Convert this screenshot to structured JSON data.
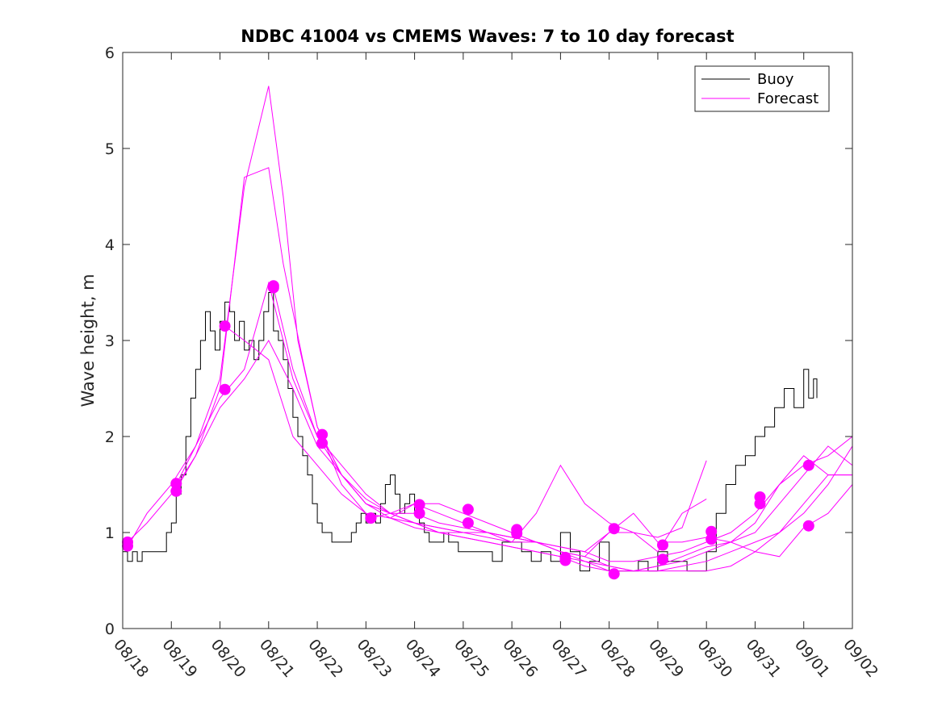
{
  "chart_data": {
    "type": "line",
    "title": "NDBC 41004 vs CMEMS Waves: 7 to 10 day forecast",
    "xlabel": "",
    "ylabel": "Wave height, m",
    "xlim": [
      0,
      15
    ],
    "ylim": [
      0,
      6
    ],
    "yticks": [
      0,
      1,
      2,
      3,
      4,
      5,
      6
    ],
    "xtick_labels": [
      "08/18",
      "08/19",
      "08/20",
      "08/21",
      "08/22",
      "08/23",
      "08/24",
      "08/25",
      "08/26",
      "08/27",
      "08/28",
      "08/29",
      "08/30",
      "08/31",
      "09/01",
      "09/02"
    ],
    "legend": {
      "position": "top-right",
      "entries": [
        {
          "name": "Buoy",
          "color": "#000000"
        },
        {
          "name": "Forecast",
          "color": "#ff00ff"
        }
      ]
    },
    "colors": {
      "buoy": "#000000",
      "forecast": "#ff00ff"
    },
    "series": [
      {
        "name": "Buoy",
        "color": "#000000",
        "x": [
          0.0,
          0.1,
          0.2,
          0.3,
          0.4,
          0.5,
          0.6,
          0.7,
          0.8,
          0.9,
          1.0,
          1.1,
          1.2,
          1.3,
          1.4,
          1.5,
          1.6,
          1.7,
          1.8,
          1.9,
          2.0,
          2.1,
          2.2,
          2.3,
          2.4,
          2.5,
          2.6,
          2.7,
          2.8,
          2.9,
          3.0,
          3.1,
          3.2,
          3.3,
          3.4,
          3.5,
          3.6,
          3.7,
          3.8,
          3.9,
          4.0,
          4.1,
          4.2,
          4.3,
          4.4,
          4.5,
          4.6,
          4.7,
          4.8,
          4.9,
          5.0,
          5.1,
          5.2,
          5.3,
          5.4,
          5.5,
          5.6,
          5.7,
          5.8,
          5.9,
          6.0,
          6.1,
          6.2,
          6.3,
          6.4,
          6.5,
          6.6,
          6.7,
          6.8,
          6.9,
          7.0,
          7.2,
          7.4,
          7.6,
          7.8,
          8.0,
          8.2,
          8.4,
          8.6,
          8.8,
          9.0,
          9.2,
          9.4,
          9.6,
          9.8,
          10.0,
          10.2,
          10.4,
          10.6,
          10.8,
          11.0,
          11.2,
          11.4,
          11.6,
          11.8,
          12.0,
          12.2,
          12.4,
          12.6,
          12.8,
          13.0,
          13.2,
          13.4,
          13.6,
          13.8,
          14.0,
          14.1,
          14.2,
          14.27
        ],
        "y": [
          0.8,
          0.7,
          0.8,
          0.7,
          0.8,
          0.8,
          0.8,
          0.8,
          0.8,
          1.0,
          1.1,
          1.4,
          1.6,
          2.0,
          2.4,
          2.7,
          3.0,
          3.3,
          3.1,
          2.9,
          3.2,
          3.4,
          3.3,
          3.0,
          3.2,
          2.9,
          3.0,
          2.8,
          3.0,
          3.3,
          3.5,
          3.1,
          3.0,
          2.8,
          2.5,
          2.2,
          2.0,
          1.8,
          1.6,
          1.3,
          1.1,
          1.0,
          1.0,
          0.9,
          0.9,
          0.9,
          0.9,
          1.0,
          1.1,
          1.2,
          1.1,
          1.2,
          1.1,
          1.3,
          1.5,
          1.6,
          1.4,
          1.2,
          1.3,
          1.4,
          1.2,
          1.1,
          1.0,
          0.9,
          0.9,
          0.9,
          1.0,
          0.9,
          0.9,
          0.8,
          0.8,
          0.8,
          0.8,
          0.7,
          0.9,
          0.9,
          0.8,
          0.7,
          0.8,
          0.7,
          1.0,
          0.8,
          0.6,
          0.7,
          0.9,
          0.6,
          0.6,
          0.6,
          0.7,
          0.6,
          0.8,
          0.7,
          0.7,
          0.6,
          0.6,
          0.8,
          1.2,
          1.5,
          1.7,
          1.8,
          2.0,
          2.1,
          2.3,
          2.5,
          2.3,
          2.7,
          2.4,
          2.6,
          2.4
        ]
      },
      {
        "name": "Forecast",
        "color": "#ff00ff",
        "x": [
          0.1,
          0.5,
          1.0,
          1.5,
          2.0,
          2.5,
          3.0,
          3.5,
          4.0,
          4.5,
          5.0,
          5.5,
          6.0,
          6.5,
          7.0,
          7.5,
          8.0,
          8.5,
          9.0,
          9.5,
          10.0,
          10.5,
          11.0,
          11.5,
          12.0,
          12.5,
          13.0,
          13.5,
          14.0,
          14.5,
          15.0
        ],
        "y": [
          0.9,
          1.1,
          1.4,
          1.8,
          2.3,
          2.6,
          3.0,
          2.5,
          1.9,
          1.6,
          1.3,
          1.2,
          1.1,
          1.0,
          1.0,
          0.95,
          0.9,
          0.9,
          0.85,
          0.8,
          0.7,
          0.7,
          0.75,
          0.8,
          0.9,
          1.0,
          1.2,
          1.5,
          1.8,
          1.6,
          1.6
        ]
      },
      {
        "name": "Forecast",
        "color": "#ff00ff",
        "x": [
          0.1,
          0.5,
          1.0,
          1.5,
          2.0,
          2.5,
          3.0,
          3.5,
          4.0,
          4.5,
          5.0,
          5.5,
          6.0,
          6.5,
          7.0,
          7.5,
          8.0,
          8.5,
          9.0,
          9.5,
          10.0,
          10.5,
          11.0,
          11.5,
          12.0,
          12.5,
          13.0,
          13.5,
          14.0,
          14.5,
          15.0
        ],
        "y": [
          0.85,
          1.2,
          1.5,
          1.9,
          2.4,
          2.7,
          3.6,
          2.6,
          2.0,
          1.7,
          1.4,
          1.2,
          1.1,
          1.05,
          1.0,
          1.0,
          0.95,
          0.9,
          0.8,
          0.75,
          0.65,
          0.6,
          0.65,
          0.7,
          0.8,
          0.9,
          1.0,
          1.3,
          1.6,
          1.9,
          1.7
        ]
      },
      {
        "name": "Forecast",
        "color": "#ff00ff",
        "x": [
          1.1,
          1.5,
          2.0,
          2.5,
          3.0,
          3.3,
          3.6,
          4.0,
          4.5,
          5.0,
          5.5,
          6.0,
          6.5,
          7.0,
          7.5,
          8.0,
          8.5,
          9.0,
          9.5,
          10.0,
          10.5,
          11.0,
          11.5,
          12.0,
          12.5,
          13.0,
          13.5,
          14.0,
          14.5,
          15.0
        ],
        "y": [
          1.5,
          1.9,
          2.6,
          4.6,
          5.65,
          4.5,
          3.0,
          2.1,
          1.6,
          1.3,
          1.15,
          1.05,
          1.0,
          0.95,
          0.9,
          0.85,
          0.8,
          0.75,
          0.65,
          0.6,
          0.6,
          0.6,
          0.65,
          0.7,
          0.8,
          0.9,
          1.0,
          1.2,
          1.5,
          1.9
        ]
      },
      {
        "name": "Forecast",
        "color": "#ff00ff",
        "x": [
          1.1,
          1.5,
          2.0,
          2.5,
          3.0,
          3.3,
          3.7,
          4.0,
          4.5,
          5.0,
          5.5,
          6.0,
          6.5,
          7.0,
          7.5,
          8.0,
          8.5,
          9.0,
          9.5,
          10.0,
          10.5,
          11.0,
          11.5,
          12.0,
          12.5,
          13.0,
          13.5,
          14.0,
          14.5,
          15.0
        ],
        "y": [
          1.45,
          1.8,
          2.5,
          4.7,
          4.8,
          3.8,
          2.8,
          2.1,
          1.6,
          1.35,
          1.2,
          1.1,
          1.0,
          0.95,
          0.9,
          0.85,
          0.8,
          0.75,
          0.7,
          0.65,
          0.6,
          0.6,
          0.6,
          0.6,
          0.65,
          0.8,
          1.0,
          1.3,
          1.6,
          1.6
        ]
      },
      {
        "name": "Forecast",
        "color": "#ff00ff",
        "x": [
          2.1,
          2.5,
          3.0,
          3.5,
          4.0,
          4.5,
          5.0,
          5.5,
          6.0,
          6.5,
          7.0,
          7.5,
          8.0,
          8.5,
          9.0,
          9.5,
          10.0,
          10.5,
          11.0,
          11.5,
          12.0,
          12.5,
          13.0,
          13.5,
          14.0,
          14.5,
          15.0
        ],
        "y": [
          3.15,
          3.0,
          2.8,
          2.0,
          1.7,
          1.4,
          1.2,
          1.15,
          1.1,
          1.05,
          1.0,
          1.0,
          0.95,
          0.9,
          0.8,
          0.7,
          0.6,
          0.6,
          0.65,
          0.75,
          0.85,
          0.9,
          1.1,
          1.5,
          1.7,
          1.8,
          2.0
        ]
      },
      {
        "name": "Forecast",
        "color": "#ff00ff",
        "x": [
          3.1,
          3.5,
          4.0,
          4.5,
          5.0,
          5.5,
          6.0,
          6.5,
          7.0,
          7.5,
          8.0,
          8.5,
          9.0,
          9.5,
          10.0,
          10.5,
          11.0,
          11.5,
          12.0,
          12.5,
          13.0,
          13.5,
          14.0,
          14.5,
          15.0
        ],
        "y": [
          3.55,
          2.7,
          2.0,
          1.6,
          1.3,
          1.2,
          1.3,
          1.2,
          1.1,
          1.0,
          0.95,
          0.9,
          0.85,
          0.8,
          1.0,
          1.2,
          0.9,
          0.9,
          0.95,
          0.9,
          0.8,
          0.75,
          1.05,
          1.2,
          1.5
        ]
      },
      {
        "name": "Forecast",
        "color": "#ff00ff",
        "x": [
          4.1,
          4.5,
          5.0,
          5.5,
          6.0,
          6.5,
          7.0,
          7.5,
          8.0,
          8.5,
          9.0,
          9.5,
          10.0,
          10.5,
          11.0,
          11.5,
          12.0
        ],
        "y": [
          2.0,
          1.5,
          1.2,
          1.15,
          1.3,
          1.3,
          1.2,
          1.1,
          1.0,
          0.9,
          0.8,
          0.75,
          1.0,
          1.0,
          0.8,
          1.2,
          1.35
        ]
      },
      {
        "name": "Forecast",
        "color": "#ff00ff",
        "x": [
          5.1,
          5.5,
          6.0,
          6.5,
          7.0,
          7.5,
          8.0,
          8.5,
          9.0,
          9.5,
          10.0,
          10.5,
          11.0,
          11.5,
          12.0
        ],
        "y": [
          1.15,
          1.2,
          1.2,
          1.1,
          1.05,
          1.0,
          0.9,
          1.2,
          1.7,
          1.3,
          1.1,
          1.0,
          0.95,
          1.05,
          1.75
        ]
      }
    ],
    "markers": {
      "color": "#ff00ff",
      "x": [
        0.1,
        0.1,
        1.1,
        1.1,
        2.1,
        2.1,
        3.1,
        3.1,
        4.1,
        4.1,
        5.1,
        5.1,
        6.1,
        6.1,
        7.1,
        7.1,
        8.1,
        8.1,
        9.1,
        9.1,
        10.1,
        10.1,
        11.1,
        11.1,
        12.1,
        12.1,
        13.1,
        13.1,
        14.1,
        14.1
      ],
      "y": [
        0.9,
        0.86,
        1.51,
        1.43,
        3.15,
        2.49,
        3.57,
        3.55,
        2.02,
        1.93,
        1.15,
        1.15,
        1.29,
        1.2,
        1.24,
        1.1,
        1.03,
        0.99,
        0.74,
        0.71,
        1.04,
        0.57,
        0.87,
        0.72,
        1.01,
        0.93,
        1.37,
        1.3,
        1.7,
        1.07
      ]
    }
  }
}
